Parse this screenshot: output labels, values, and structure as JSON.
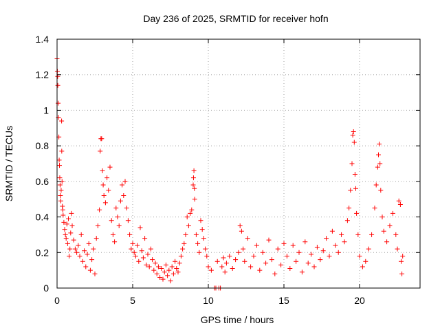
{
  "chart_data": {
    "type": "scatter",
    "title": "Day 236 of 2025, SRMTID for receiver hofn",
    "xlabel": "GPS time / hours",
    "ylabel": "SRMTID / TECUs",
    "xlim": [
      0,
      24
    ],
    "ylim": [
      0,
      1.4
    ],
    "xticks": [
      0,
      5,
      10,
      15,
      20
    ],
    "xtick_labels": [
      "0",
      "5",
      "10",
      "15",
      "20"
    ],
    "yticks": [
      0,
      0.2,
      0.4,
      0.6,
      0.8,
      1.0,
      1.2,
      1.4
    ],
    "ytick_labels": [
      "0",
      "0.2",
      "0.4",
      "0.6",
      "0.8",
      "1",
      "1.2",
      "1.4"
    ],
    "grid": true,
    "legend": "none",
    "marker": "plus",
    "colors": {
      "marker": "#ff0000",
      "grid": "#a0a0a0",
      "axis": "#000000"
    },
    "series": [
      {
        "name": "SRMTID",
        "points": [
          [
            0.0,
            1.29
          ],
          [
            0.02,
            1.22
          ],
          [
            0.04,
            1.19
          ],
          [
            0.05,
            1.14
          ],
          [
            0.07,
            1.04
          ],
          [
            0.09,
            0.96
          ],
          [
            0.12,
            0.85
          ],
          [
            0.14,
            0.72
          ],
          [
            0.16,
            0.69
          ],
          [
            0.18,
            0.62
          ],
          [
            0.2,
            0.58
          ],
          [
            0.22,
            0.52
          ],
          [
            0.25,
            0.49
          ],
          [
            0.27,
            0.55
          ],
          [
            0.3,
            0.94
          ],
          [
            0.31,
            0.77
          ],
          [
            0.33,
            0.6
          ],
          [
            0.35,
            0.46
          ],
          [
            0.38,
            0.44
          ],
          [
            0.4,
            0.41
          ],
          [
            0.45,
            0.37
          ],
          [
            0.5,
            0.33
          ],
          [
            0.55,
            0.3
          ],
          [
            0.6,
            0.28
          ],
          [
            0.65,
            0.36
          ],
          [
            0.7,
            0.25
          ],
          [
            0.75,
            0.39
          ],
          [
            0.8,
            0.18
          ],
          [
            0.85,
            0.22
          ],
          [
            0.9,
            0.31
          ],
          [
            0.95,
            0.42
          ],
          [
            1.0,
            0.35
          ],
          [
            1.1,
            0.27
          ],
          [
            1.2,
            0.22
          ],
          [
            1.3,
            0.2
          ],
          [
            1.4,
            0.24
          ],
          [
            1.5,
            0.18
          ],
          [
            1.6,
            0.3
          ],
          [
            1.7,
            0.15
          ],
          [
            1.8,
            0.21
          ],
          [
            1.9,
            0.12
          ],
          [
            2.0,
            0.19
          ],
          [
            2.1,
            0.25
          ],
          [
            2.2,
            0.1
          ],
          [
            2.3,
            0.16
          ],
          [
            2.4,
            0.22
          ],
          [
            2.5,
            0.08
          ],
          [
            2.6,
            0.28
          ],
          [
            2.7,
            0.35
          ],
          [
            2.8,
            0.44
          ],
          [
            2.85,
            0.77
          ],
          [
            2.9,
            0.84
          ],
          [
            2.95,
            0.84
          ],
          [
            3.0,
            0.66
          ],
          [
            3.05,
            0.58
          ],
          [
            3.1,
            0.52
          ],
          [
            3.2,
            0.48
          ],
          [
            3.3,
            0.62
          ],
          [
            3.4,
            0.55
          ],
          [
            3.5,
            0.68
          ],
          [
            3.6,
            0.38
          ],
          [
            3.7,
            0.3
          ],
          [
            3.8,
            0.26
          ],
          [
            3.9,
            0.45
          ],
          [
            4.0,
            0.4
          ],
          [
            4.1,
            0.35
          ],
          [
            4.2,
            0.49
          ],
          [
            4.3,
            0.58
          ],
          [
            4.4,
            0.52
          ],
          [
            4.5,
            0.6
          ],
          [
            4.6,
            0.45
          ],
          [
            4.7,
            0.38
          ],
          [
            4.8,
            0.3
          ],
          [
            4.9,
            0.22
          ],
          [
            5.0,
            0.25
          ],
          [
            5.1,
            0.2
          ],
          [
            5.2,
            0.18
          ],
          [
            5.3,
            0.24
          ],
          [
            5.4,
            0.15
          ],
          [
            5.5,
            0.34
          ],
          [
            5.6,
            0.21
          ],
          [
            5.7,
            0.17
          ],
          [
            5.8,
            0.28
          ],
          [
            5.9,
            0.13
          ],
          [
            6.0,
            0.19
          ],
          [
            6.1,
            0.12
          ],
          [
            6.2,
            0.22
          ],
          [
            6.3,
            0.16
          ],
          [
            6.4,
            0.1
          ],
          [
            6.5,
            0.14
          ],
          [
            6.6,
            0.08
          ],
          [
            6.7,
            0.12
          ],
          [
            6.8,
            0.06
          ],
          [
            6.9,
            0.11
          ],
          [
            7.0,
            0.05
          ],
          [
            7.1,
            0.09
          ],
          [
            7.2,
            0.13
          ],
          [
            7.3,
            0.07
          ],
          [
            7.4,
            0.1
          ],
          [
            7.5,
            0.04
          ],
          [
            7.6,
            0.12
          ],
          [
            7.7,
            0.08
          ],
          [
            7.8,
            0.15
          ],
          [
            7.9,
            0.11
          ],
          [
            8.0,
            0.09
          ],
          [
            8.1,
            0.14
          ],
          [
            8.2,
            0.18
          ],
          [
            8.3,
            0.22
          ],
          [
            8.4,
            0.25
          ],
          [
            8.5,
            0.3
          ],
          [
            8.6,
            0.4
          ],
          [
            8.7,
            0.35
          ],
          [
            8.8,
            0.42
          ],
          [
            8.9,
            0.44
          ],
          [
            9.0,
            0.58
          ],
          [
            9.02,
            0.62
          ],
          [
            9.05,
            0.66
          ],
          [
            9.08,
            0.56
          ],
          [
            9.1,
            0.5
          ],
          [
            9.2,
            0.3
          ],
          [
            9.3,
            0.25
          ],
          [
            9.4,
            0.2
          ],
          [
            9.5,
            0.38
          ],
          [
            9.6,
            0.33
          ],
          [
            9.7,
            0.28
          ],
          [
            9.8,
            0.22
          ],
          [
            9.9,
            0.18
          ],
          [
            10.0,
            0.12
          ],
          [
            10.2,
            0.1
          ],
          [
            10.4,
            0.0
          ],
          [
            10.5,
            0.0
          ],
          [
            10.6,
            0.15
          ],
          [
            10.7,
            0.0
          ],
          [
            10.8,
            0.0
          ],
          [
            10.9,
            0.12
          ],
          [
            11.0,
            0.17
          ],
          [
            11.1,
            0.09
          ],
          [
            11.2,
            0.14
          ],
          [
            11.4,
            0.18
          ],
          [
            11.6,
            0.11
          ],
          [
            11.8,
            0.16
          ],
          [
            12.0,
            0.2
          ],
          [
            12.1,
            0.35
          ],
          [
            12.2,
            0.32
          ],
          [
            12.3,
            0.22
          ],
          [
            12.4,
            0.15
          ],
          [
            12.6,
            0.28
          ],
          [
            12.8,
            0.12
          ],
          [
            13.0,
            0.18
          ],
          [
            13.2,
            0.24
          ],
          [
            13.4,
            0.1
          ],
          [
            13.6,
            0.2
          ],
          [
            13.8,
            0.14
          ],
          [
            14.0,
            0.27
          ],
          [
            14.2,
            0.16
          ],
          [
            14.4,
            0.08
          ],
          [
            14.6,
            0.22
          ],
          [
            14.8,
            0.13
          ],
          [
            15.0,
            0.25
          ],
          [
            15.2,
            0.18
          ],
          [
            15.4,
            0.11
          ],
          [
            15.6,
            0.24
          ],
          [
            15.8,
            0.15
          ],
          [
            16.0,
            0.2
          ],
          [
            16.2,
            0.09
          ],
          [
            16.4,
            0.26
          ],
          [
            16.6,
            0.14
          ],
          [
            16.8,
            0.19
          ],
          [
            17.0,
            0.12
          ],
          [
            17.2,
            0.23
          ],
          [
            17.4,
            0.16
          ],
          [
            17.6,
            0.21
          ],
          [
            17.8,
            0.28
          ],
          [
            18.0,
            0.18
          ],
          [
            18.2,
            0.32
          ],
          [
            18.4,
            0.24
          ],
          [
            18.6,
            0.2
          ],
          [
            18.8,
            0.3
          ],
          [
            19.0,
            0.26
          ],
          [
            19.2,
            0.38
          ],
          [
            19.3,
            0.45
          ],
          [
            19.4,
            0.55
          ],
          [
            19.5,
            0.7
          ],
          [
            19.55,
            0.86
          ],
          [
            19.6,
            0.88
          ],
          [
            19.65,
            0.82
          ],
          [
            19.7,
            0.64
          ],
          [
            19.75,
            0.56
          ],
          [
            19.8,
            0.42
          ],
          [
            19.9,
            0.3
          ],
          [
            20.0,
            0.18
          ],
          [
            20.2,
            0.12
          ],
          [
            20.4,
            0.15
          ],
          [
            20.6,
            0.22
          ],
          [
            20.8,
            0.3
          ],
          [
            21.0,
            0.45
          ],
          [
            21.1,
            0.58
          ],
          [
            21.2,
            0.68
          ],
          [
            21.25,
            0.75
          ],
          [
            21.3,
            0.81
          ],
          [
            21.35,
            0.7
          ],
          [
            21.4,
            0.55
          ],
          [
            21.5,
            0.4
          ],
          [
            21.6,
            0.32
          ],
          [
            21.8,
            0.26
          ],
          [
            22.0,
            0.35
          ],
          [
            22.2,
            0.42
          ],
          [
            22.4,
            0.3
          ],
          [
            22.5,
            0.22
          ],
          [
            22.6,
            0.49
          ],
          [
            22.7,
            0.47
          ],
          [
            22.75,
            0.15
          ],
          [
            22.8,
            0.08
          ],
          [
            22.85,
            0.18
          ]
        ]
      }
    ]
  }
}
